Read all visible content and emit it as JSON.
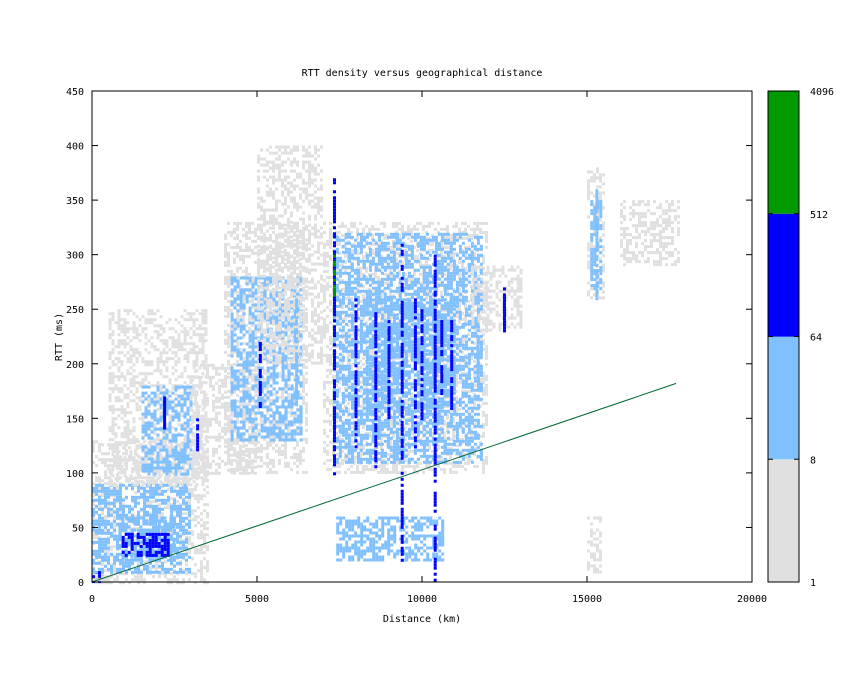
{
  "chart_data": {
    "type": "heatmap",
    "title": "RTT density versus geographical distance",
    "xlabel": "Distance (km)",
    "ylabel": "RTT (ms)",
    "xlim": [
      0,
      20000
    ],
    "ylim": [
      0,
      450
    ],
    "x_ticks": [
      "0",
      "5000",
      "10000",
      "15000",
      "20000"
    ],
    "y_ticks": [
      "0",
      "50",
      "100",
      "150",
      "200",
      "250",
      "300",
      "350",
      "400",
      "450"
    ],
    "x_tick_values": [
      0,
      5000,
      10000,
      15000,
      20000
    ],
    "y_tick_values": [
      0,
      50,
      100,
      150,
      200,
      250,
      300,
      350,
      400,
      450
    ],
    "grid": false,
    "colorbar": {
      "scale": "log",
      "tick_labels": [
        "1",
        "8",
        "64",
        "512",
        "4096"
      ],
      "tick_values": [
        1,
        8,
        64,
        512,
        4096
      ],
      "levels": [
        {
          "from": 1,
          "to": 8,
          "color": "#e0e0e0"
        },
        {
          "from": 8,
          "to": 64,
          "color": "#80c0ff"
        },
        {
          "from": 64,
          "to": 512,
          "color": "#0000ff"
        },
        {
          "from": 512,
          "to": 4096,
          "color": "#009900"
        }
      ]
    },
    "reference_line": {
      "color": "#006633",
      "points": [
        [
          0,
          0
        ],
        [
          17700,
          182
        ]
      ]
    },
    "density_regions": [
      {
        "x": [
          0,
          300
        ],
        "y": [
          0,
          10
        ],
        "level": 2
      },
      {
        "x": [
          0,
          3500
        ],
        "y": [
          0,
          130
        ],
        "level": 0
      },
      {
        "x": [
          0,
          3000
        ],
        "y": [
          10,
          90
        ],
        "level": 1
      },
      {
        "x": [
          800,
          2500
        ],
        "y": [
          20,
          60
        ],
        "level": 1
      },
      {
        "x": [
          900,
          2300
        ],
        "y": [
          25,
          45
        ],
        "level": 2
      },
      {
        "x": [
          500,
          3500
        ],
        "y": [
          90,
          250
        ],
        "level": 0
      },
      {
        "x": [
          1500,
          3000
        ],
        "y": [
          100,
          180
        ],
        "level": 1
      },
      {
        "x": [
          3000,
          5000
        ],
        "y": [
          100,
          200
        ],
        "level": 0
      },
      {
        "x": [
          4000,
          6500
        ],
        "y": [
          100,
          330
        ],
        "level": 0
      },
      {
        "x": [
          4200,
          6300
        ],
        "y": [
          130,
          280
        ],
        "level": 1
      },
      {
        "x": [
          5000,
          7000
        ],
        "y": [
          200,
          400
        ],
        "level": 0
      },
      {
        "x": [
          7000,
          12000
        ],
        "y": [
          100,
          330
        ],
        "level": 0
      },
      {
        "x": [
          7300,
          11800
        ],
        "y": [
          110,
          320
        ],
        "level": 1
      },
      {
        "x": [
          8300,
          11000
        ],
        "y": [
          160,
          260
        ],
        "level": 1
      },
      {
        "x": [
          7400,
          10600
        ],
        "y": [
          20,
          60
        ],
        "level": 1
      },
      {
        "x": [
          11500,
          13000
        ],
        "y": [
          230,
          290
        ],
        "level": 0
      },
      {
        "x": [
          15000,
          15500
        ],
        "y": [
          260,
          380
        ],
        "level": 0
      },
      {
        "x": [
          15100,
          15400
        ],
        "y": [
          270,
          350
        ],
        "level": 1
      },
      {
        "x": [
          16000,
          17800
        ],
        "y": [
          290,
          350
        ],
        "level": 0
      },
      {
        "x": [
          15000,
          15400
        ],
        "y": [
          10,
          60
        ],
        "level": 0
      }
    ],
    "dense_columns": [
      {
        "x": 7350,
        "y": [
          100,
          370
        ],
        "level": 2
      },
      {
        "x": 7350,
        "y": [
          260,
          300
        ],
        "level": 3
      },
      {
        "x": 9400,
        "y": [
          20,
          310
        ],
        "level": 2
      },
      {
        "x": 10400,
        "y": [
          0,
          300
        ],
        "level": 2
      },
      {
        "x": 8000,
        "y": [
          120,
          260
        ],
        "level": 2
      },
      {
        "x": 8600,
        "y": [
          100,
          250
        ],
        "level": 2
      },
      {
        "x": 9000,
        "y": [
          150,
          240
        ],
        "level": 2
      },
      {
        "x": 9800,
        "y": [
          120,
          260
        ],
        "level": 2
      },
      {
        "x": 10000,
        "y": [
          150,
          250
        ],
        "level": 2
      },
      {
        "x": 10600,
        "y": [
          170,
          240
        ],
        "level": 2
      },
      {
        "x": 10900,
        "y": [
          160,
          240
        ],
        "level": 2
      },
      {
        "x": 11700,
        "y": [
          190,
          240
        ],
        "level": 1
      },
      {
        "x": 5100,
        "y": [
          160,
          220
        ],
        "level": 2
      },
      {
        "x": 6200,
        "y": [
          160,
          260
        ],
        "level": 1
      },
      {
        "x": 3200,
        "y": [
          120,
          150
        ],
        "level": 2
      },
      {
        "x": 2200,
        "y": [
          140,
          170
        ],
        "level": 2
      },
      {
        "x": 12500,
        "y": [
          230,
          270
        ],
        "level": 2
      },
      {
        "x": 15300,
        "y": [
          260,
          360
        ],
        "level": 1
      }
    ]
  }
}
